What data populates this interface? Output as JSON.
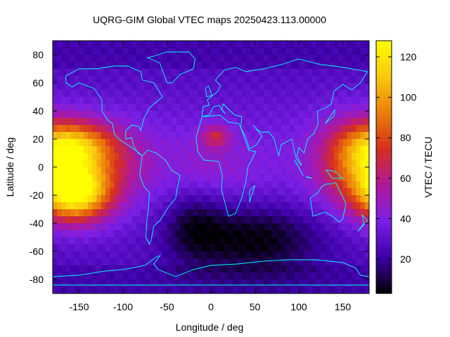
{
  "chart_data": {
    "type": "heatmap",
    "title": "UQRG-GIM Global VTEC maps 20250423.113.00000",
    "xlabel": "Longitude / deg",
    "ylabel": "Latitude / deg",
    "colorbar_label": "VTEC / TECU",
    "xlim": [
      -180,
      180
    ],
    "ylim": [
      -90,
      90
    ],
    "x_ticks": [
      -150,
      -100,
      -50,
      0,
      50,
      100,
      150
    ],
    "y_ticks": [
      -80,
      -60,
      -40,
      -20,
      0,
      20,
      40,
      60,
      80
    ],
    "colorbar_range": [
      3,
      128
    ],
    "colorbar_ticks": [
      20,
      40,
      60,
      80,
      100,
      120
    ],
    "colormap": [
      "#000000",
      "#3d00a8",
      "#7b1fe6",
      "#b0189a",
      "#d62f1e",
      "#ec7d0a",
      "#f9c80e",
      "#ffff00"
    ],
    "coastline_color": "#00ffff",
    "grid": false,
    "features": [
      {
        "lon": -155,
        "lat": -18,
        "value": 125,
        "sigma_lon": 28,
        "sigma_lat": 14
      },
      {
        "lon": -158,
        "lat": 15,
        "value": 90,
        "sigma_lon": 30,
        "sigma_lat": 12
      },
      {
        "lon": -120,
        "lat": 5,
        "value": 55,
        "sigma_lon": 35,
        "sigma_lat": 18
      },
      {
        "lon": 165,
        "lat": 5,
        "value": 78,
        "sigma_lon": 30,
        "sigma_lat": 20
      },
      {
        "lon": 5,
        "lat": 22,
        "value": 62,
        "sigma_lon": 12,
        "sigma_lat": 6
      },
      {
        "lon": 0,
        "lat": 0,
        "value": 40,
        "sigma_lon": 35,
        "sigma_lat": 15
      },
      {
        "lon": 50,
        "lat": -50,
        "value": 5,
        "sigma_lon": 55,
        "sigma_lat": 18
      },
      {
        "lon": -20,
        "lat": -40,
        "value": 14,
        "sigma_lon": 25,
        "sigma_lat": 18
      }
    ],
    "base_value": 32
  }
}
